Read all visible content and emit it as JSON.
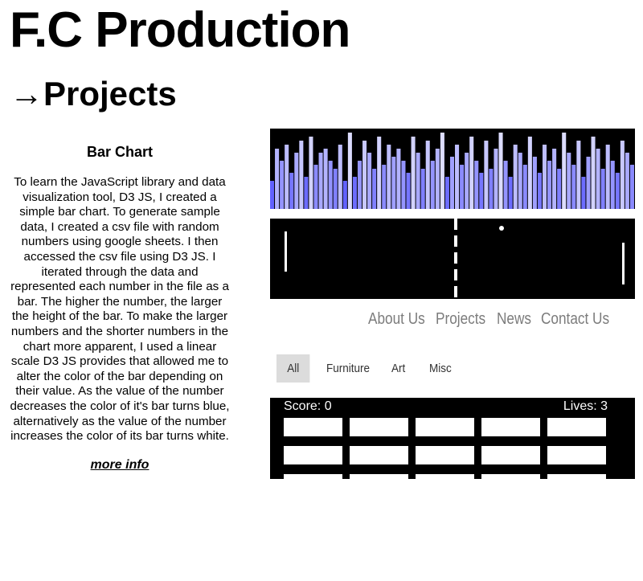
{
  "site_title": "F.C Production",
  "section_title": "→Projects",
  "project": {
    "heading": "Bar Chart",
    "description": "To learn the JavaScript library and data visualization tool, D3 JS, I created a simple bar chart. To generate sample data, I created a csv file with random numbers using google sheets. I then accessed the csv file using D3 JS. I iterated through the data and represented each number in the file as a bar. The higher the number, the larger the height of the bar. To make the larger numbers and the shorter numbers in the chart more apparent, I used a linear scale D3 JS provides that allowed me to alter the color of the bar depending on their value. As the value of the number decreases the color of it's bar turns blue, alternatively as the value of the number increases the color of its bar turns white.",
    "more_info_label": "more info"
  },
  "colors": {
    "page_background": "#ffffff",
    "canvas_background": "#000000",
    "bar_low": "#1a1aff",
    "bar_high": "#e6e6ff",
    "nav_text": "#7c7c7c",
    "active_filter_bg": "#dcdcdc"
  },
  "bar_preview": {
    "bar_levels": [
      0.35,
      0.75,
      0.6,
      0.8,
      0.45,
      0.7,
      0.85,
      0.4,
      0.9,
      0.55,
      0.7,
      0.75,
      0.6,
      0.5,
      0.8,
      0.35,
      0.95,
      0.4,
      0.6,
      0.85,
      0.7,
      0.5,
      0.9,
      0.55,
      0.8,
      0.65,
      0.75,
      0.6,
      0.45,
      0.9,
      0.7,
      0.5,
      0.85,
      0.6,
      0.75,
      0.95,
      0.4,
      0.65,
      0.8,
      0.55,
      0.7,
      0.9,
      0.6,
      0.45,
      0.85,
      0.5,
      0.75,
      0.95,
      0.6,
      0.4,
      0.8,
      0.7,
      0.55,
      0.9,
      0.65,
      0.45,
      0.8,
      0.6,
      0.75,
      0.5,
      0.95,
      0.7,
      0.55,
      0.85,
      0.4,
      0.65,
      0.9,
      0.75,
      0.5,
      0.8,
      0.6,
      0.45,
      0.85,
      0.7,
      0.55
    ]
  },
  "pong_preview": {},
  "nav_preview": {
    "items": [
      "About Us",
      "Projects",
      "News",
      "Contact Us"
    ]
  },
  "filter_preview": {
    "items": [
      "All",
      "Furniture",
      "Art",
      "Misc"
    ],
    "selected": "All"
  },
  "breakout_preview": {
    "score_label": "Score: 0",
    "lives_label": "Lives: 3",
    "brick_rows": 3,
    "brick_cols": 5
  }
}
